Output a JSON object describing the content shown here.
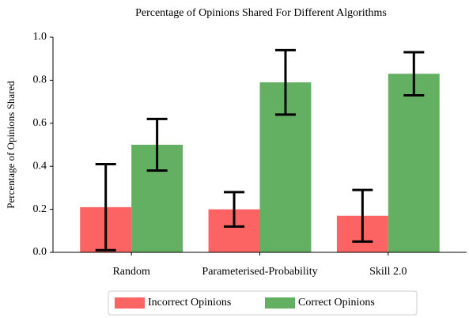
{
  "chart_data": {
    "type": "bar",
    "title": "Percentage of Opinions Shared For Different Algorithms",
    "ylabel": "Percentage of Opinions Shared",
    "categories": [
      "Random",
      "Parameterised-Probability",
      "Skill 2.0"
    ],
    "series": [
      {
        "name": "Incorrect Opinions",
        "color": "#fc6363",
        "values": [
          0.21,
          0.2,
          0.17
        ],
        "errors": [
          0.2,
          0.08,
          0.12
        ]
      },
      {
        "name": "Correct Opinions",
        "color": "#63b063",
        "values": [
          0.5,
          0.79,
          0.83
        ],
        "errors": [
          0.12,
          0.15,
          0.1
        ]
      }
    ],
    "ylim": [
      0,
      1
    ],
    "yticks": [
      {
        "value": 0,
        "label": "0.0"
      },
      0.2,
      0.4,
      0.6,
      0.8,
      {
        "value": 1,
        "label": "1.0"
      }
    ],
    "legend": "bottom"
  }
}
